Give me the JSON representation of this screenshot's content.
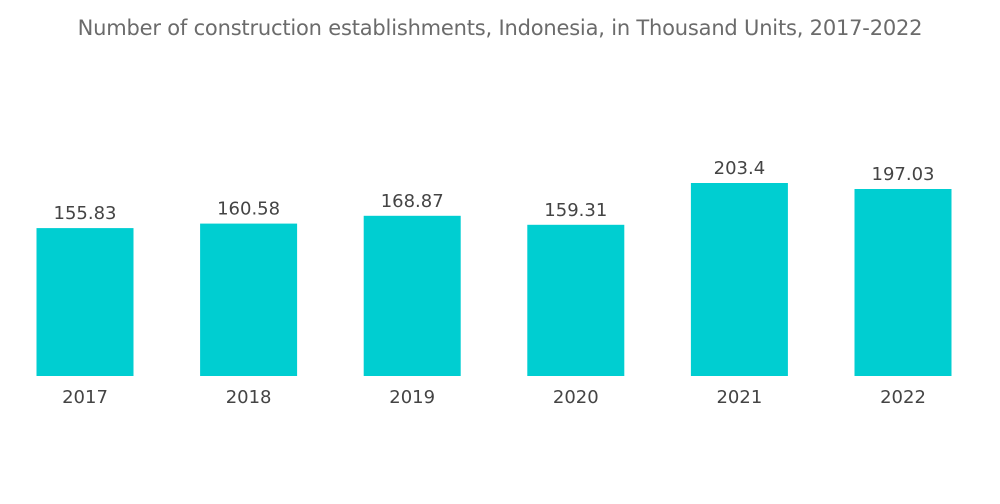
{
  "chart_data": {
    "type": "bar",
    "title": "Number of construction establishments, Indonesia, in Thousand Units, 2017-2022",
    "categories": [
      "2017",
      "2018",
      "2019",
      "2020",
      "2021",
      "2022"
    ],
    "values": [
      155.83,
      160.58,
      168.87,
      159.31,
      203.4,
      197.03
    ],
    "value_labels": [
      "155.83",
      "160.58",
      "168.87",
      "159.31",
      "203.4",
      "197.03"
    ],
    "xlabel": "",
    "ylabel": "",
    "ylim": [
      0,
      203.4
    ],
    "grid": false,
    "legend": "none",
    "bar_color": "#00CED1",
    "label_color": "#444444",
    "title_color": "#6b6b6b"
  }
}
